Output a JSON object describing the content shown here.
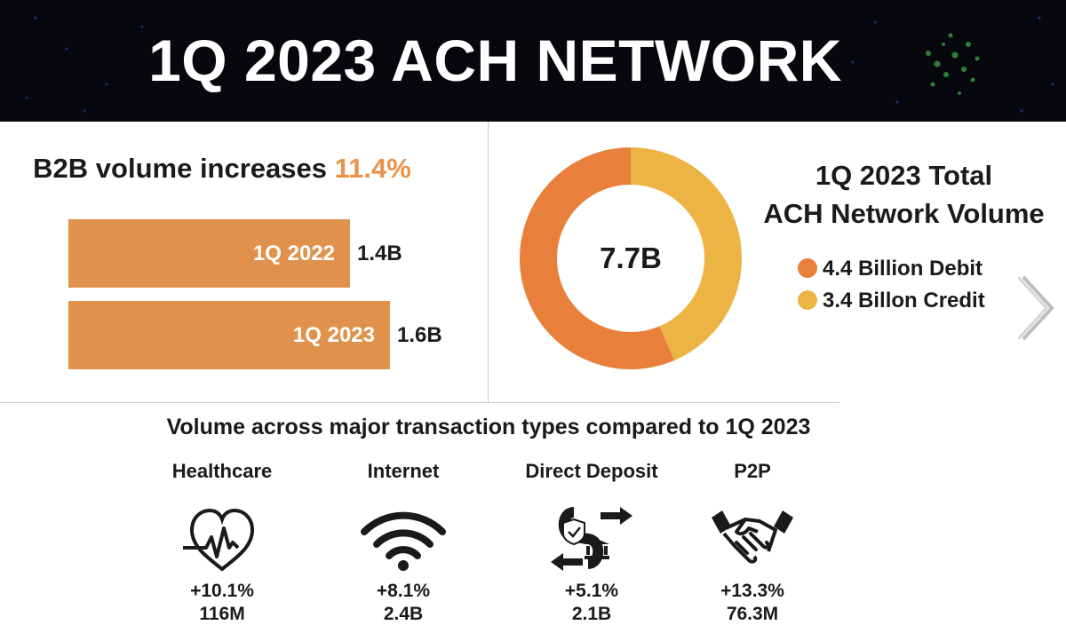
{
  "header": {
    "title": "1Q 2023 ACH NETWORK"
  },
  "b2b": {
    "heading_prefix": "B2B volume increases ",
    "heading_pct": "11.4%"
  },
  "colors": {
    "debit": "#e8803c",
    "credit": "#ecb443",
    "bar": "#e0924c",
    "accent": "#e9924a"
  },
  "chart_data": [
    {
      "type": "bar",
      "orientation": "horizontal",
      "title": "B2B volume increases 11.4%",
      "categories": [
        "1Q 2022",
        "1Q 2023"
      ],
      "values": [
        1.4,
        1.6
      ],
      "value_labels": [
        "1.4B",
        "1.6B"
      ],
      "unit": "billion"
    },
    {
      "type": "pie",
      "style": "donut",
      "title": "1Q 2023 Total ACH Network Volume",
      "center_label": "7.7B",
      "labels": [
        "Debit",
        "Credit"
      ],
      "values": [
        4.4,
        3.4
      ],
      "legend": [
        "4.4 Billion Debit",
        "3.4 Billon Credit"
      ],
      "legend_position": "right"
    }
  ],
  "total": {
    "title_line1": "1Q 2023 Total",
    "title_line2": "ACH Network Volume"
  },
  "types": {
    "heading": "Volume across major transaction types compared to 1Q 2023",
    "items": [
      {
        "label": "Healthcare",
        "icon": "heart-pulse-icon",
        "pct": "+10.1%",
        "volume": "116M"
      },
      {
        "label": "Internet",
        "icon": "wifi-icon",
        "pct": "+8.1%",
        "volume": "2.4B"
      },
      {
        "label": "Direct Deposit",
        "icon": "dollar-bank-icon",
        "pct": "+5.1%",
        "volume": "2.1B"
      },
      {
        "label": "P2P",
        "icon": "handshake-icon",
        "pct": "+13.3%",
        "volume": "76.3M"
      }
    ]
  }
}
